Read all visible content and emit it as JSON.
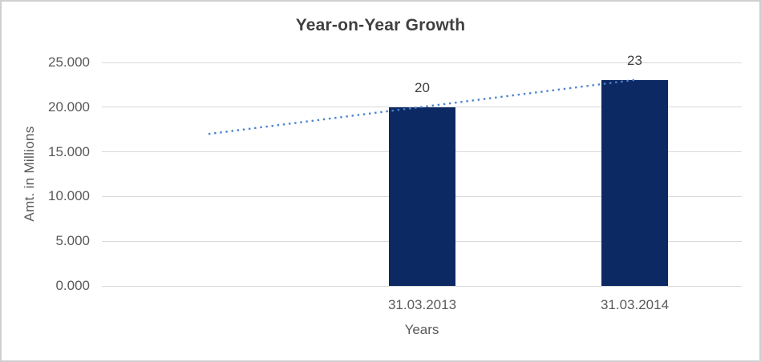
{
  "chart_data": {
    "type": "bar",
    "title": "Year-on-Year Growth",
    "xlabel": "Years",
    "ylabel": "Amt. in Millions",
    "categories": [
      "31.03.2013",
      "31.03.2014"
    ],
    "series": [
      {
        "values": [
          20,
          23
        ],
        "data_labels": [
          "20",
          "23"
        ],
        "color": "#0d2963"
      }
    ],
    "trendline": {
      "type": "linear",
      "style": "dotted",
      "color": "#4a82cf",
      "start_value": 17,
      "end_value": 23.05
    },
    "ylim": [
      0,
      25
    ],
    "ytick_step": 5,
    "ytick_labels": [
      "0.000",
      "5.000",
      "10.000",
      "15.000",
      "20.000",
      "25.000"
    ],
    "grid": true,
    "legend": "none"
  },
  "colors": {
    "bar": "#0d2963",
    "trendline": "#4a82cf",
    "gridline": "#d9d9d9",
    "axis_text": "#595959",
    "title_text": "#404040",
    "data_label_text": "#404040",
    "border": "#cfcfcf",
    "background": "#ffffff"
  }
}
